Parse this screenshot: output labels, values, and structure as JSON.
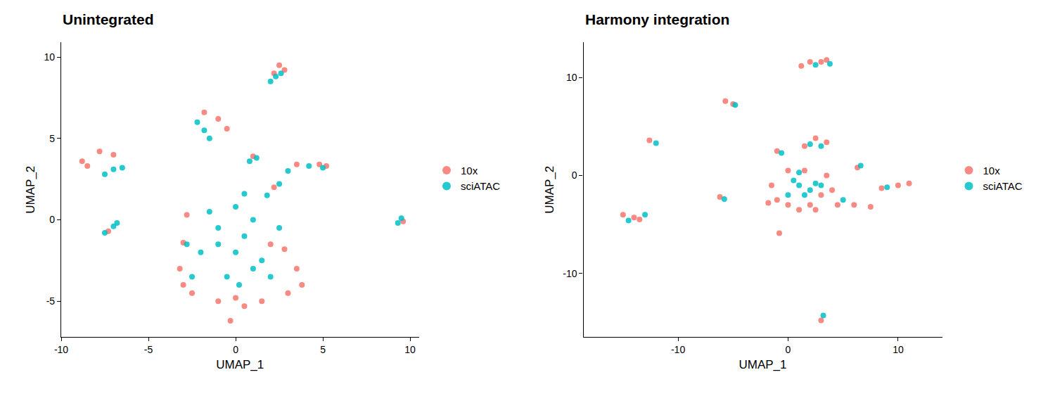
{
  "chart_data": [
    {
      "type": "scatter",
      "title": "Unintegrated",
      "x_label": "UMAP_1",
      "y_label": "UMAP_2",
      "xlim": [
        -10,
        10.5
      ],
      "ylim": [
        -7.2,
        10.9
      ],
      "xticks": [
        -10,
        -5,
        0,
        5,
        10
      ],
      "yticks": [
        -5,
        0,
        5,
        10
      ],
      "grid": false,
      "legend": "right",
      "series": [
        {
          "name": "10x",
          "color": "#F8766D",
          "x": [
            2.5,
            2.8,
            2.2,
            -1.8,
            -1.0,
            -0.5,
            -8.5,
            -7.8,
            -7.0,
            -8.8,
            -7.3,
            9.6,
            1.0,
            3.5,
            4.8,
            5.2,
            2.2,
            -3.0,
            -3.2,
            -2.5,
            2.8,
            3.5,
            3.8,
            3.0,
            1.5,
            0.0,
            -1.0,
            2.0,
            0.5,
            -2.8,
            -3.0,
            -0.3
          ],
          "y": [
            9.5,
            9.2,
            9.0,
            6.6,
            6.2,
            5.6,
            3.3,
            4.2,
            4.0,
            3.6,
            -0.7,
            -0.1,
            3.9,
            3.4,
            3.4,
            3.3,
            2.0,
            -4.0,
            -3.0,
            -4.5,
            -1.8,
            -3.0,
            -4.0,
            -4.5,
            -5.0,
            -4.8,
            -5.0,
            -1.5,
            -5.3,
            0.3,
            -1.4,
            -6.2
          ]
        },
        {
          "name": "sciATAC",
          "color": "#00BFC4",
          "x": [
            2.3,
            2.0,
            2.6,
            -1.8,
            -1.5,
            -2.2,
            -7.0,
            -7.5,
            -6.5,
            -7.0,
            -7.5,
            -6.8,
            9.3,
            9.5,
            0.8,
            1.2,
            4.2,
            3.0,
            5.0,
            1.8,
            2.5,
            0.0,
            1.0,
            -1.0,
            0.5,
            1.5,
            -0.5,
            2.0,
            -2.5,
            0.0,
            0.5,
            -1.5,
            -1.0,
            1.0,
            -2.0,
            2.5,
            -2.8,
            0.2
          ],
          "y": [
            8.8,
            8.5,
            9.0,
            5.5,
            5.0,
            6.0,
            3.1,
            2.8,
            3.2,
            -0.4,
            -0.8,
            -0.2,
            -0.2,
            0.1,
            3.6,
            3.8,
            3.3,
            3.0,
            3.2,
            1.5,
            2.2,
            -2.0,
            -3.0,
            -1.5,
            -1.0,
            -2.5,
            -3.5,
            -3.5,
            -3.5,
            0.8,
            1.6,
            0.5,
            -0.5,
            0.0,
            -2.0,
            -0.5,
            -1.5,
            -4.0
          ]
        }
      ]
    },
    {
      "type": "scatter",
      "title": "Harmony integration",
      "x_label": "UMAP_1",
      "y_label": "UMAP_2",
      "xlim": [
        -18.6,
        14
      ],
      "ylim": [
        -16.5,
        13.6
      ],
      "xticks": [
        -10,
        0,
        10
      ],
      "yticks": [
        -10,
        0,
        10
      ],
      "grid": false,
      "legend": "right",
      "series": [
        {
          "name": "10x",
          "color": "#F8766D",
          "x": [
            1.2,
            2.0,
            3.0,
            3.5,
            -5.7,
            -5.0,
            -12.6,
            -15.0,
            -14.0,
            -13.5,
            -6.2,
            3.0,
            -0.8,
            -1.0,
            1.5,
            2.5,
            3.5,
            6.3,
            -1.5,
            -1.0,
            0.0,
            1.0,
            2.0,
            3.0,
            4.0,
            3.5,
            1.5,
            0.0,
            -1.8,
            2.5,
            4.5,
            6.0,
            7.5,
            8.5,
            10.0,
            11.0
          ],
          "y": [
            11.2,
            11.6,
            11.6,
            11.8,
            7.6,
            7.3,
            3.6,
            -4.0,
            -4.3,
            -4.5,
            -2.2,
            -14.8,
            -5.9,
            2.5,
            3.0,
            3.8,
            3.4,
            0.8,
            -1.0,
            -2.5,
            -3.0,
            -3.5,
            -3.0,
            -2.0,
            -1.5,
            0.0,
            0.5,
            0.5,
            -2.8,
            -3.5,
            -3.0,
            -3.0,
            -3.2,
            -1.3,
            -1.0,
            -0.8
          ]
        },
        {
          "name": "sciATAC",
          "color": "#00BFC4",
          "x": [
            2.5,
            3.8,
            -4.8,
            -12.0,
            -14.5,
            -13.0,
            -5.8,
            3.2,
            -0.6,
            2.0,
            3.0,
            6.6,
            1.0,
            2.0,
            1.5,
            0.5,
            2.5,
            0.0,
            3.0,
            1.0,
            5.0,
            9.0
          ],
          "y": [
            11.3,
            11.4,
            7.2,
            3.3,
            -4.6,
            -4.0,
            -2.4,
            -14.3,
            2.3,
            3.2,
            3.0,
            1.0,
            -1.0,
            -1.5,
            -2.0,
            -0.5,
            -0.8,
            -2.0,
            -1.0,
            0.3,
            -2.5,
            -1.2
          ]
        }
      ]
    }
  ]
}
